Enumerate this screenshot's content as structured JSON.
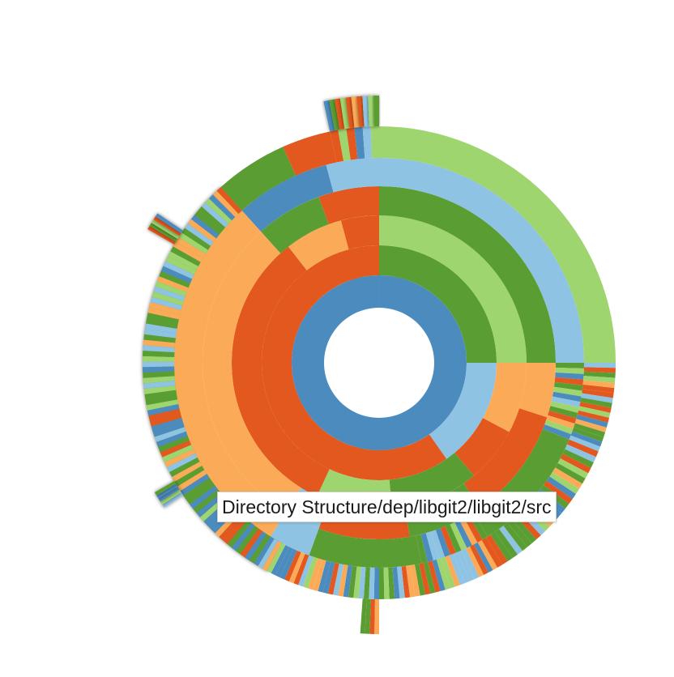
{
  "tooltip": {
    "text": "Directory Structure/dep/libgit2/libgit2/src"
  },
  "palette": {
    "blue": "#4b8bbe",
    "orange": "#e2581f",
    "green": "#5a9e33",
    "light_green": "#9fd56e",
    "light_orange": "#fbab57",
    "light_blue": "#8ec3e3"
  }
}
